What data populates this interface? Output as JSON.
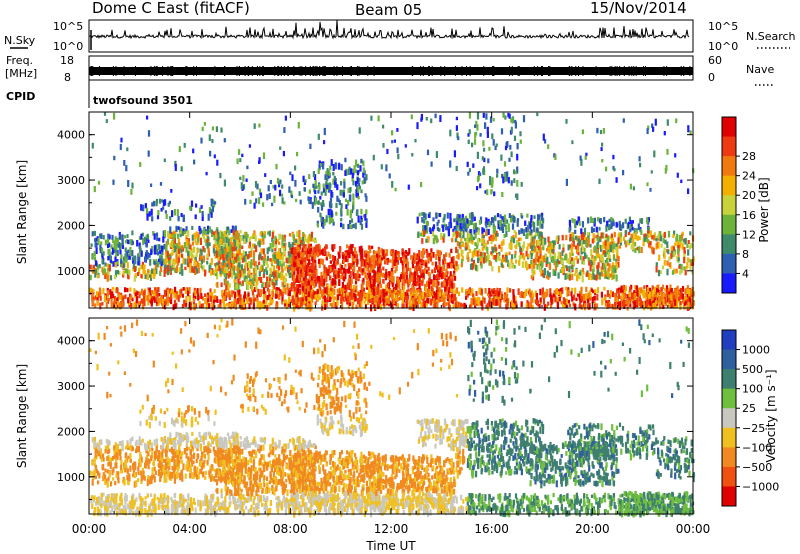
{
  "header": {
    "radar_title": "Dome C East (fitACF)",
    "beam": "Beam 05",
    "date": "15/Nov/2014"
  },
  "top_panel": {
    "left_label": "N.Sky",
    "right_label": "N.Search",
    "left_ticks": [
      "10^5",
      "10^0"
    ],
    "right_ticks": [
      "10^5",
      "10^0"
    ]
  },
  "freq_panel": {
    "left_label_1": "Freq.",
    "left_label_2": "[MHz]",
    "right_label": "Nave",
    "left_ticks": [
      "18",
      "8"
    ],
    "right_ticks": [
      "60",
      "0"
    ]
  },
  "cpid_panel": {
    "label": "CPID",
    "program": "twofsound 3501"
  },
  "chart_data": [
    {
      "type": "heatmap",
      "title": "Power",
      "ylabel": "Slant Range [km]",
      "xlabel": "",
      "ylim": [
        180,
        4500
      ],
      "yticks": [
        "1000",
        "2000",
        "3000",
        "4000"
      ],
      "xlim": [
        "00:00",
        "24:00"
      ],
      "colorbar": {
        "label": "Power [dB]",
        "ticks": [
          "4",
          "8",
          "12",
          "16",
          "20",
          "24",
          "28"
        ],
        "colors": [
          "#1a1aff",
          "#2f5fb0",
          "#3f8a6a",
          "#6cb33a",
          "#c8d23a",
          "#f3b000",
          "#f07a10",
          "#ee3a10",
          "#e00000"
        ]
      }
    },
    {
      "type": "heatmap",
      "title": "Velocity",
      "ylabel": "Slant Range [km]",
      "xlabel": "Time UT",
      "ylim": [
        180,
        4500
      ],
      "yticks": [
        "1000",
        "2000",
        "3000",
        "4000"
      ],
      "xlim": [
        "00:00",
        "24:00"
      ],
      "xticks": [
        "00:00",
        "04:00",
        "08:00",
        "12:00",
        "16:00",
        "20:00",
        "00:00"
      ],
      "colorbar": {
        "label": "Velocity [m s⁻¹]",
        "ticks": [
          "1000",
          "500",
          "100",
          "25",
          "−25",
          "−100",
          "−500",
          "−1000"
        ],
        "colors": [
          "#1f3fbf",
          "#2f5f9f",
          "#3f7f6f",
          "#6fbf3f",
          "#c8c8c0",
          "#f0c020",
          "#f08a20",
          "#f05010",
          "#e00000"
        ]
      }
    }
  ]
}
